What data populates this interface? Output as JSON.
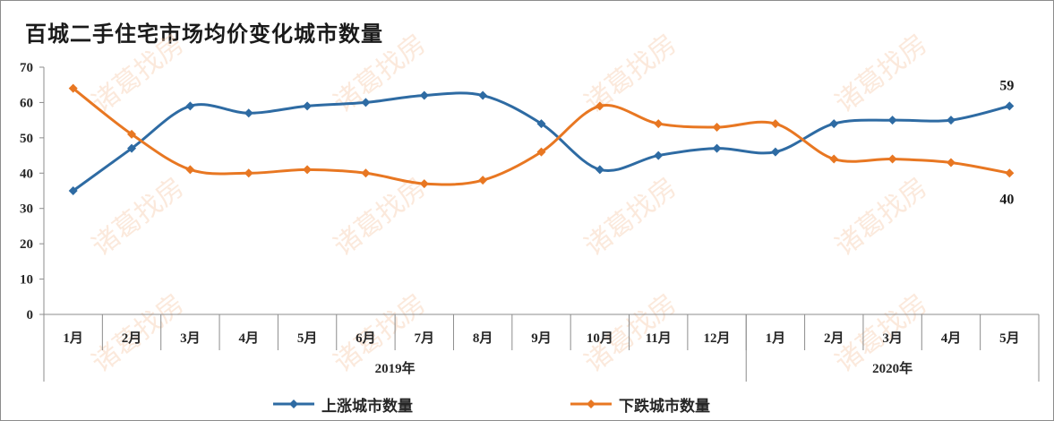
{
  "chart_data": {
    "type": "line",
    "title": "百城二手住宅市场均价变化城市数量",
    "categories": [
      "1月",
      "2月",
      "3月",
      "4月",
      "5月",
      "6月",
      "7月",
      "8月",
      "9月",
      "10月",
      "11月",
      "12月",
      "1月",
      "2月",
      "3月",
      "4月",
      "5月"
    ],
    "groups": [
      {
        "label": "2019年",
        "span": 12
      },
      {
        "label": "2020年",
        "span": 5
      }
    ],
    "ylim": [
      0,
      70
    ],
    "yticks": [
      "0",
      "10",
      "20",
      "30",
      "40",
      "50",
      "60",
      "70"
    ],
    "grid": false,
    "legend_position": "bottom",
    "series": [
      {
        "name": "上涨城市数量",
        "color": "#2e6ba3",
        "values": [
          35,
          47,
          59,
          57,
          59,
          60,
          62,
          62,
          54,
          41,
          45,
          47,
          46,
          54,
          55,
          55,
          59
        ]
      },
      {
        "name": "下跌城市数量",
        "color": "#e87722",
        "values": [
          64,
          51,
          41,
          40,
          41,
          40,
          37,
          38,
          46,
          59,
          54,
          53,
          54,
          44,
          44,
          43,
          40
        ]
      }
    ],
    "end_labels": [
      "59",
      "40"
    ],
    "watermark": "诸葛找房"
  }
}
